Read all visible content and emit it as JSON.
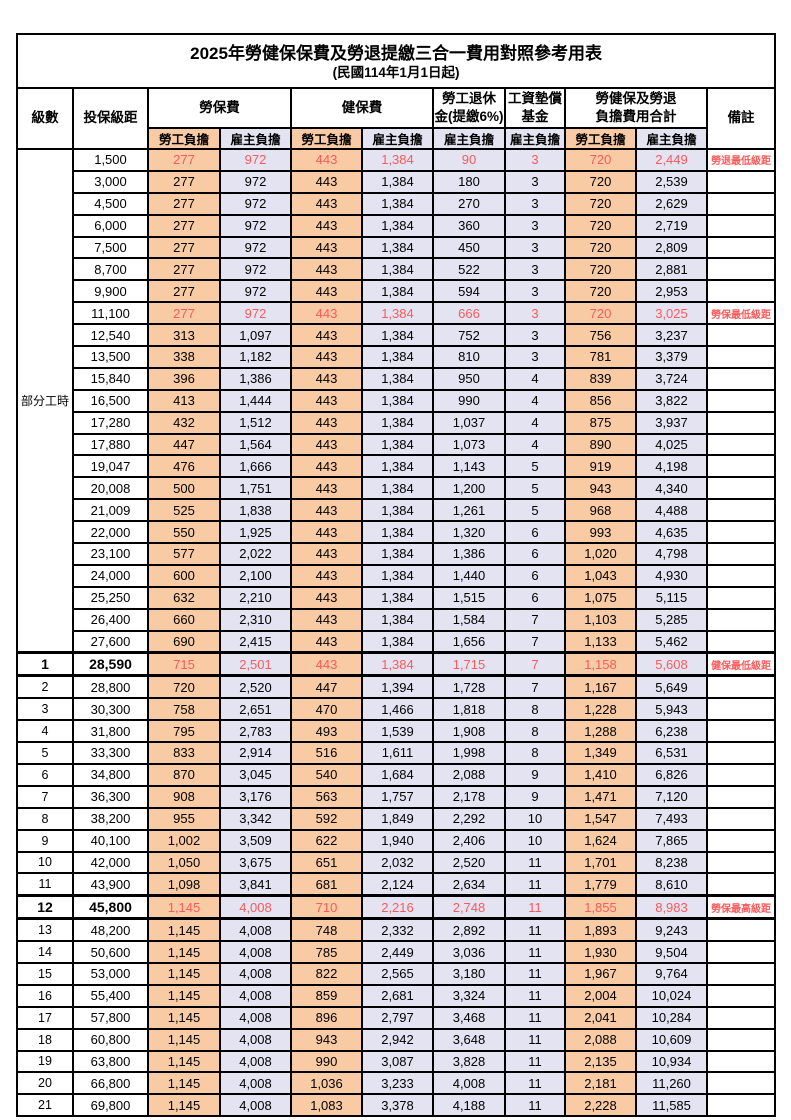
{
  "title": {
    "line1": "2025年勞健保保費及勞退提繳三合一費用對照參考用表",
    "line2": "(民國114年1月1日起)"
  },
  "header": {
    "level": "級數",
    "bracket": "投保級距",
    "labor_ins": "勞保費",
    "health_ins": "健保費",
    "pension": "勞工退休\n金(提繳6%)",
    "wage_fund": "工資墊償\n基金",
    "total": "勞健保及勞退\n負擔費用合計",
    "remark": "備註",
    "employee": "勞工負擔",
    "employer": "雇主負擔"
  },
  "group_label": "部分工時",
  "group_rowspan": 23,
  "colors": {
    "employee_bg": "#F9CBA4",
    "employer_bg": "#E4E3F2",
    "red": "#FB5A5A",
    "border": "#000000"
  },
  "rows": [
    {
      "level": "",
      "bracket": "1,500",
      "v": [
        "277",
        "972",
        "443",
        "1,384",
        "90",
        "3",
        "720",
        "2,449"
      ],
      "remark": "勞退最低級距",
      "red": true
    },
    {
      "level": "",
      "bracket": "3,000",
      "v": [
        "277",
        "972",
        "443",
        "1,384",
        "180",
        "3",
        "720",
        "2,539"
      ]
    },
    {
      "level": "",
      "bracket": "4,500",
      "v": [
        "277",
        "972",
        "443",
        "1,384",
        "270",
        "3",
        "720",
        "2,629"
      ]
    },
    {
      "level": "",
      "bracket": "6,000",
      "v": [
        "277",
        "972",
        "443",
        "1,384",
        "360",
        "3",
        "720",
        "2,719"
      ]
    },
    {
      "level": "",
      "bracket": "7,500",
      "v": [
        "277",
        "972",
        "443",
        "1,384",
        "450",
        "3",
        "720",
        "2,809"
      ]
    },
    {
      "level": "",
      "bracket": "8,700",
      "v": [
        "277",
        "972",
        "443",
        "1,384",
        "522",
        "3",
        "720",
        "2,881"
      ]
    },
    {
      "level": "",
      "bracket": "9,900",
      "v": [
        "277",
        "972",
        "443",
        "1,384",
        "594",
        "3",
        "720",
        "2,953"
      ]
    },
    {
      "level": "",
      "bracket": "11,100",
      "v": [
        "277",
        "972",
        "443",
        "1,384",
        "666",
        "3",
        "720",
        "3,025"
      ],
      "remark": "勞保最低級距",
      "red": true
    },
    {
      "level": "",
      "bracket": "12,540",
      "v": [
        "313",
        "1,097",
        "443",
        "1,384",
        "752",
        "3",
        "756",
        "3,237"
      ]
    },
    {
      "level": "",
      "bracket": "13,500",
      "v": [
        "338",
        "1,182",
        "443",
        "1,384",
        "810",
        "3",
        "781",
        "3,379"
      ]
    },
    {
      "level": "",
      "bracket": "15,840",
      "v": [
        "396",
        "1,386",
        "443",
        "1,384",
        "950",
        "4",
        "839",
        "3,724"
      ]
    },
    {
      "level": "",
      "bracket": "16,500",
      "v": [
        "413",
        "1,444",
        "443",
        "1,384",
        "990",
        "4",
        "856",
        "3,822"
      ]
    },
    {
      "level": "",
      "bracket": "17,280",
      "v": [
        "432",
        "1,512",
        "443",
        "1,384",
        "1,037",
        "4",
        "875",
        "3,937"
      ]
    },
    {
      "level": "",
      "bracket": "17,880",
      "v": [
        "447",
        "1,564",
        "443",
        "1,384",
        "1,073",
        "4",
        "890",
        "4,025"
      ]
    },
    {
      "level": "",
      "bracket": "19,047",
      "v": [
        "476",
        "1,666",
        "443",
        "1,384",
        "1,143",
        "5",
        "919",
        "4,198"
      ]
    },
    {
      "level": "",
      "bracket": "20,008",
      "v": [
        "500",
        "1,751",
        "443",
        "1,384",
        "1,200",
        "5",
        "943",
        "4,340"
      ]
    },
    {
      "level": "",
      "bracket": "21,009",
      "v": [
        "525",
        "1,838",
        "443",
        "1,384",
        "1,261",
        "5",
        "968",
        "4,488"
      ]
    },
    {
      "level": "",
      "bracket": "22,000",
      "v": [
        "550",
        "1,925",
        "443",
        "1,384",
        "1,320",
        "6",
        "993",
        "4,635"
      ]
    },
    {
      "level": "",
      "bracket": "23,100",
      "v": [
        "577",
        "2,022",
        "443",
        "1,384",
        "1,386",
        "6",
        "1,020",
        "4,798"
      ]
    },
    {
      "level": "",
      "bracket": "24,000",
      "v": [
        "600",
        "2,100",
        "443",
        "1,384",
        "1,440",
        "6",
        "1,043",
        "4,930"
      ]
    },
    {
      "level": "",
      "bracket": "25,250",
      "v": [
        "632",
        "2,210",
        "443",
        "1,384",
        "1,515",
        "6",
        "1,075",
        "5,115"
      ]
    },
    {
      "level": "",
      "bracket": "26,400",
      "v": [
        "660",
        "2,310",
        "443",
        "1,384",
        "1,584",
        "7",
        "1,103",
        "5,285"
      ]
    },
    {
      "level": "",
      "bracket": "27,600",
      "v": [
        "690",
        "2,415",
        "443",
        "1,384",
        "1,656",
        "7",
        "1,133",
        "5,462"
      ]
    },
    {
      "level": "1",
      "bracket": "28,590",
      "v": [
        "715",
        "2,501",
        "443",
        "1,384",
        "1,715",
        "7",
        "1,158",
        "5,608"
      ],
      "remark": "健保最低級距",
      "red": true,
      "emph": true
    },
    {
      "level": "2",
      "bracket": "28,800",
      "v": [
        "720",
        "2,520",
        "447",
        "1,394",
        "1,728",
        "7",
        "1,167",
        "5,649"
      ]
    },
    {
      "level": "3",
      "bracket": "30,300",
      "v": [
        "758",
        "2,651",
        "470",
        "1,466",
        "1,818",
        "8",
        "1,228",
        "5,943"
      ]
    },
    {
      "level": "4",
      "bracket": "31,800",
      "v": [
        "795",
        "2,783",
        "493",
        "1,539",
        "1,908",
        "8",
        "1,288",
        "6,238"
      ]
    },
    {
      "level": "5",
      "bracket": "33,300",
      "v": [
        "833",
        "2,914",
        "516",
        "1,611",
        "1,998",
        "8",
        "1,349",
        "6,531"
      ]
    },
    {
      "level": "6",
      "bracket": "34,800",
      "v": [
        "870",
        "3,045",
        "540",
        "1,684",
        "2,088",
        "9",
        "1,410",
        "6,826"
      ]
    },
    {
      "level": "7",
      "bracket": "36,300",
      "v": [
        "908",
        "3,176",
        "563",
        "1,757",
        "2,178",
        "9",
        "1,471",
        "7,120"
      ]
    },
    {
      "level": "8",
      "bracket": "38,200",
      "v": [
        "955",
        "3,342",
        "592",
        "1,849",
        "2,292",
        "10",
        "1,547",
        "7,493"
      ]
    },
    {
      "level": "9",
      "bracket": "40,100",
      "v": [
        "1,002",
        "3,509",
        "622",
        "1,940",
        "2,406",
        "10",
        "1,624",
        "7,865"
      ]
    },
    {
      "level": "10",
      "bracket": "42,000",
      "v": [
        "1,050",
        "3,675",
        "651",
        "2,032",
        "2,520",
        "11",
        "1,701",
        "8,238"
      ]
    },
    {
      "level": "11",
      "bracket": "43,900",
      "v": [
        "1,098",
        "3,841",
        "681",
        "2,124",
        "2,634",
        "11",
        "1,779",
        "8,610"
      ]
    },
    {
      "level": "12",
      "bracket": "45,800",
      "v": [
        "1,145",
        "4,008",
        "710",
        "2,216",
        "2,748",
        "11",
        "1,855",
        "8,983"
      ],
      "remark": "勞保最高級距",
      "red": true,
      "emph": true
    },
    {
      "level": "13",
      "bracket": "48,200",
      "v": [
        "1,145",
        "4,008",
        "748",
        "2,332",
        "2,892",
        "11",
        "1,893",
        "9,243"
      ]
    },
    {
      "level": "14",
      "bracket": "50,600",
      "v": [
        "1,145",
        "4,008",
        "785",
        "2,449",
        "3,036",
        "11",
        "1,930",
        "9,504"
      ]
    },
    {
      "level": "15",
      "bracket": "53,000",
      "v": [
        "1,145",
        "4,008",
        "822",
        "2,565",
        "3,180",
        "11",
        "1,967",
        "9,764"
      ]
    },
    {
      "level": "16",
      "bracket": "55,400",
      "v": [
        "1,145",
        "4,008",
        "859",
        "2,681",
        "3,324",
        "11",
        "2,004",
        "10,024"
      ]
    },
    {
      "level": "17",
      "bracket": "57,800",
      "v": [
        "1,145",
        "4,008",
        "896",
        "2,797",
        "3,468",
        "11",
        "2,041",
        "10,284"
      ]
    },
    {
      "level": "18",
      "bracket": "60,800",
      "v": [
        "1,145",
        "4,008",
        "943",
        "2,942",
        "3,648",
        "11",
        "2,088",
        "10,609"
      ]
    },
    {
      "level": "19",
      "bracket": "63,800",
      "v": [
        "1,145",
        "4,008",
        "990",
        "3,087",
        "3,828",
        "11",
        "2,135",
        "10,934"
      ]
    },
    {
      "level": "20",
      "bracket": "66,800",
      "v": [
        "1,145",
        "4,008",
        "1,036",
        "3,233",
        "4,008",
        "11",
        "2,181",
        "11,260"
      ]
    },
    {
      "level": "21",
      "bracket": "69,800",
      "v": [
        "1,145",
        "4,008",
        "1,083",
        "3,378",
        "4,188",
        "11",
        "2,228",
        "11,585"
      ]
    }
  ]
}
